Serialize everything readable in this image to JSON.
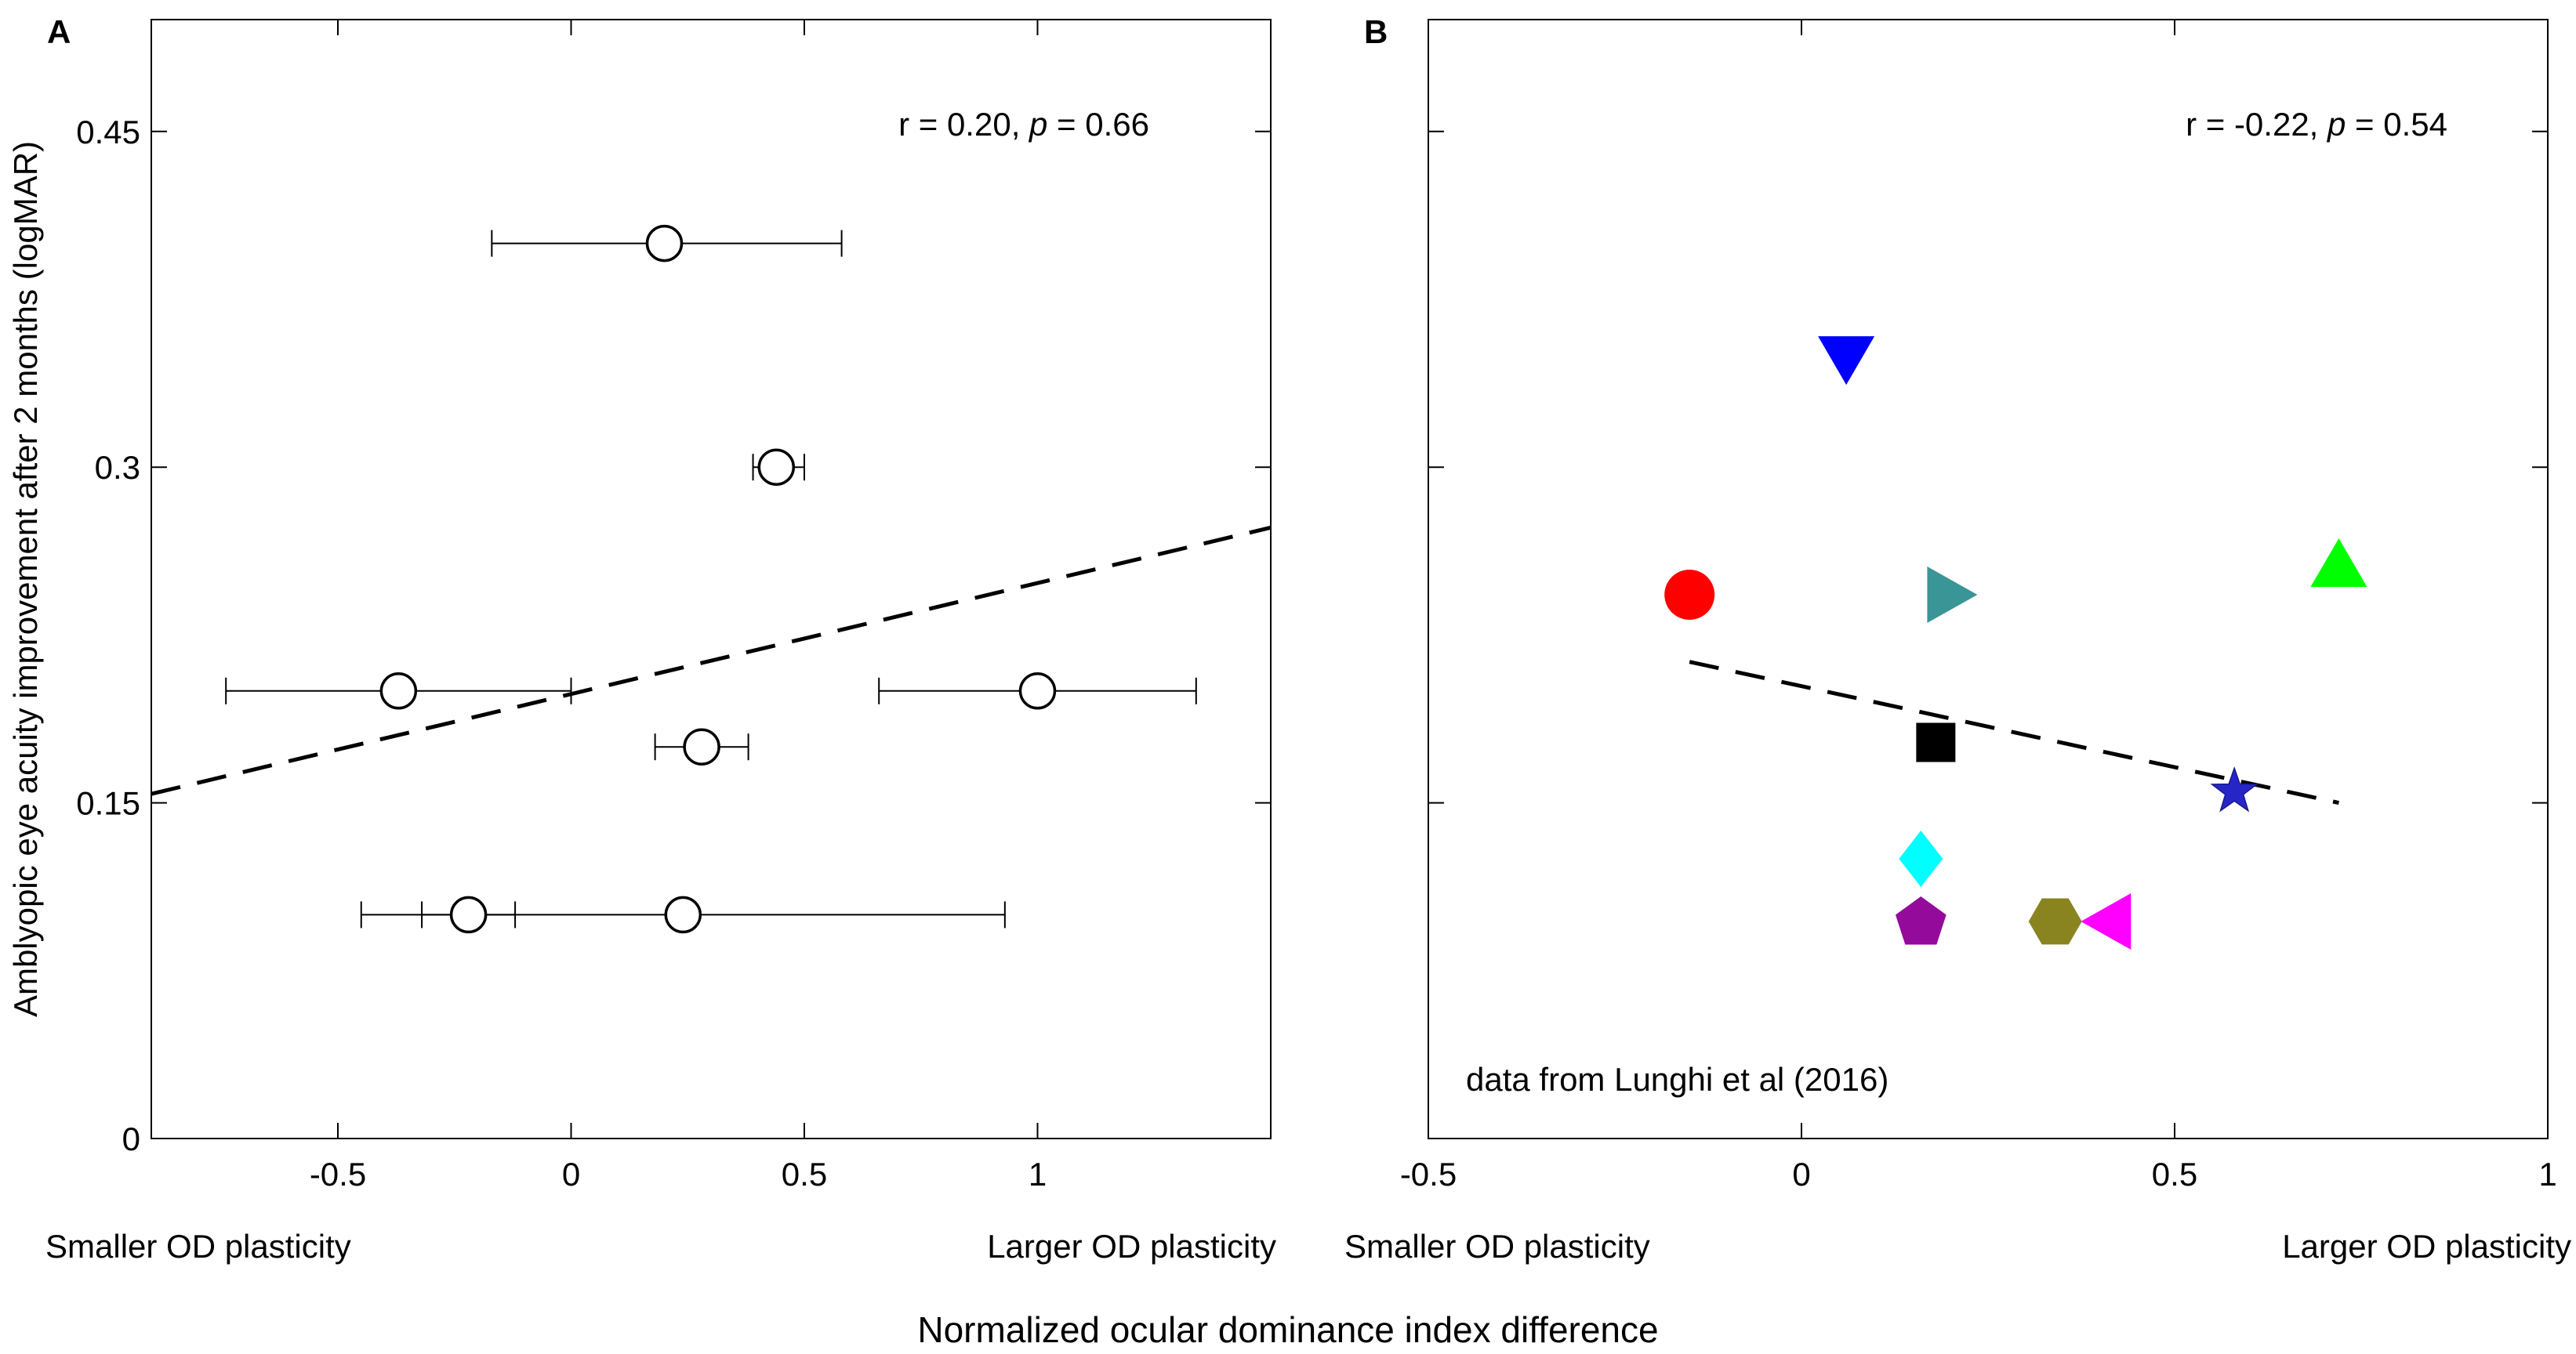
{
  "figure": {
    "shared_xlabel": "Normalized ocular dominance index difference",
    "colors": {
      "axis": "#000000",
      "background": "#ffffff"
    }
  },
  "chart_data": [
    {
      "panel": "A",
      "type": "scatter",
      "xlim": [
        -0.9,
        1.5
      ],
      "ylim": [
        0,
        0.5
      ],
      "xticks": [
        -0.5,
        0,
        0.5,
        1
      ],
      "xtick_labels": [
        "-0.5",
        "0",
        "0.5",
        "1"
      ],
      "yticks": [
        0,
        0.15,
        0.3,
        0.45
      ],
      "ytick_labels": [
        "0",
        "0.15",
        "0.3",
        "0.45"
      ],
      "ylabel": "Amblyopic eye acuity improvement after 2 months (logMAR)",
      "x_left_annotation": "Smaller OD plasticity",
      "x_right_annotation": "Larger OD plasticity",
      "stat": {
        "r_text": "r = 0.20,",
        "p_symbol": "p",
        "p_text": " = 0.66"
      },
      "marker": "open-circle",
      "points": [
        {
          "x": 0.2,
          "y": 0.4,
          "xerr_low": -0.17,
          "xerr_high": 0.58
        },
        {
          "x": 0.44,
          "y": 0.3,
          "xerr_low": 0.39,
          "xerr_high": 0.5
        },
        {
          "x": -0.37,
          "y": 0.2,
          "xerr_low": -0.74,
          "xerr_high": 0.0
        },
        {
          "x": 1.0,
          "y": 0.2,
          "xerr_low": 0.66,
          "xerr_high": 1.34
        },
        {
          "x": 0.28,
          "y": 0.175,
          "xerr_low": 0.18,
          "xerr_high": 0.38
        },
        {
          "x": -0.22,
          "y": 0.1,
          "xerr_low": -0.45,
          "xerr_high": -0.12
        },
        {
          "x": 0.24,
          "y": 0.1,
          "xerr_low": -0.32,
          "xerr_high": 0.93
        }
      ],
      "fit_line": {
        "style": "dashed",
        "x": [
          -0.9,
          1.5
        ],
        "y": [
          0.154,
          0.273
        ]
      }
    },
    {
      "panel": "B",
      "type": "scatter",
      "xlim": [
        -0.5,
        1.0
      ],
      "ylim": [
        0,
        0.5
      ],
      "xticks": [
        -0.5,
        0,
        0.5,
        1
      ],
      "xtick_labels": [
        "-0.5",
        "0",
        "0.5",
        "1"
      ],
      "yticks": [
        0,
        0.15,
        0.3,
        0.45
      ],
      "x_left_annotation": "Smaller OD plasticity",
      "x_right_annotation": "Larger OD plasticity",
      "stat": {
        "r_text": "r = -0.22,",
        "p_symbol": "p",
        "p_text": " = 0.54"
      },
      "note": "data from Lunghi et al (2016)",
      "points": [
        {
          "x": -0.15,
          "y": 0.243,
          "marker": "circle",
          "color": "#ff0000"
        },
        {
          "x": 0.06,
          "y": 0.348,
          "marker": "triangle-down",
          "color": "#0000ff"
        },
        {
          "x": 0.2,
          "y": 0.243,
          "marker": "triangle-right",
          "color": "#3a9597"
        },
        {
          "x": 0.72,
          "y": 0.257,
          "marker": "triangle-up",
          "color": "#00ff00"
        },
        {
          "x": 0.18,
          "y": 0.177,
          "marker": "square",
          "color": "#000000"
        },
        {
          "x": 0.58,
          "y": 0.155,
          "marker": "star",
          "color": "#2626c8"
        },
        {
          "x": 0.16,
          "y": 0.125,
          "marker": "diamond",
          "color": "#00ffff"
        },
        {
          "x": 0.16,
          "y": 0.097,
          "marker": "pentagon",
          "color": "#940a9b"
        },
        {
          "x": 0.34,
          "y": 0.097,
          "marker": "hexagon",
          "color": "#8a8420"
        },
        {
          "x": 0.41,
          "y": 0.097,
          "marker": "triangle-left",
          "color": "#ff00ff"
        }
      ],
      "fit_line": {
        "style": "dashed",
        "x": [
          -0.15,
          0.72
        ],
        "y": [
          0.213,
          0.15
        ]
      }
    }
  ]
}
